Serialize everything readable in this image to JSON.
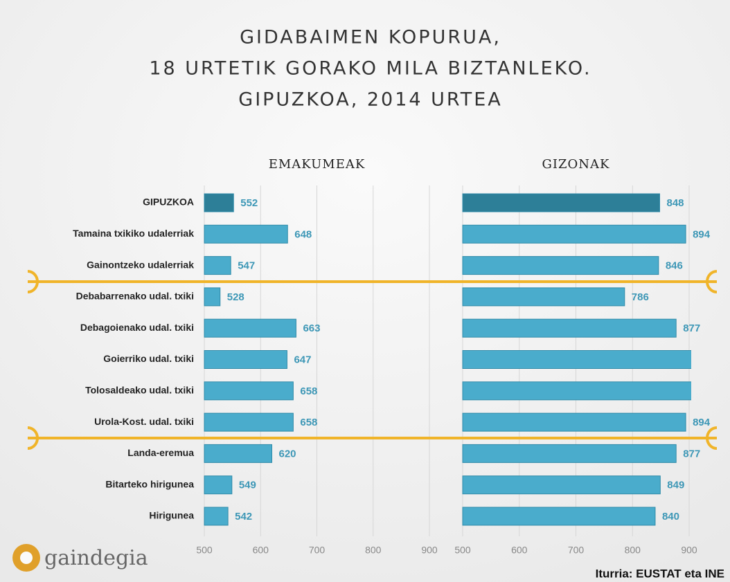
{
  "chart_data": {
    "type": "bar",
    "orientation": "horizontal",
    "title": [
      "GIDABAIMEN KOPURUA,",
      "18 URTETIK GORAKO MILA BIZTANLEKO.",
      "GIPUZKOA, 2014 URTEA"
    ],
    "categories": [
      "GIPUZKOA",
      "Tamaina txikiko udalerriak",
      "Gainontzeko udalerriak",
      "Debabarrenako udal. txiki",
      "Debagoienako udal. txiki",
      "Goierriko udal. txiki",
      "Tolosaldeako udal. txiki",
      "Urola-Kost. udal. txiki",
      "Landa-eremua",
      "Bitarteko hirigunea",
      "Hirigunea"
    ],
    "highlight_color": "#2d7f98",
    "series": [
      {
        "name": "EMAKUMEAK",
        "color": "#4aaccc",
        "values": [
          552,
          648,
          547,
          528,
          663,
          647,
          658,
          658,
          620,
          549,
          542
        ]
      },
      {
        "name": "GIZONAK",
        "color": "#4aaccc",
        "values": [
          848,
          894,
          846,
          786,
          877,
          910,
          910,
          894,
          877,
          849,
          840
        ],
        "value_labels": [
          "848",
          "894",
          "846",
          "786",
          "877",
          null,
          null,
          "894",
          "877",
          "849",
          "840"
        ]
      }
    ],
    "xlim": [
      500,
      900
    ],
    "xticks": [
      500,
      600,
      700,
      800,
      900
    ],
    "grid": true,
    "footer": {
      "logo": "gaindegia",
      "source": "Iturria: EUSTAT eta INE"
    }
  }
}
